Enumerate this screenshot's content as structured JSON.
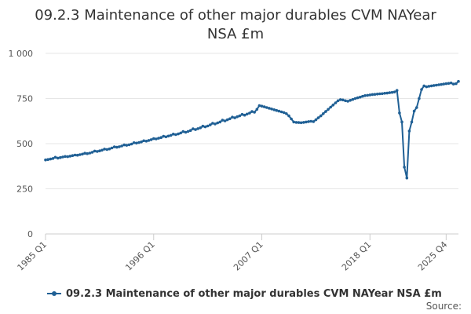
{
  "chart_data": {
    "type": "line",
    "title": "09.2.3 Maintenance of other major durables CVM NAYear NSA £m",
    "title_lines": [
      "09.2.3 Maintenance of other major durables CVM NAYear",
      "NSA £m"
    ],
    "xlabel": "",
    "ylabel": "",
    "ylim": [
      0,
      1000
    ],
    "y_ticks": [
      0,
      250,
      500,
      750,
      1000
    ],
    "y_tick_labels": [
      "0",
      "250",
      "500",
      "750",
      "1 000"
    ],
    "x_ticks": [
      "1985 Q1",
      "1996 Q1",
      "2007 Q1",
      "2018 Q1",
      "2025 Q4"
    ],
    "x_tick_index": [
      0,
      44,
      88,
      132,
      163
    ],
    "grid": "horizontal",
    "legend_position": "bottom",
    "color": "#206095",
    "series": [
      {
        "name": "09.2.3 Maintenance of other major durables CVM NAYear NSA £m",
        "start_quarter": "1985 Q1",
        "values": [
          410,
          412,
          415,
          418,
          425,
          420,
          423,
          426,
          429,
          428,
          431,
          434,
          437,
          436,
          439,
          442,
          447,
          445,
          448,
          452,
          459,
          457,
          460,
          464,
          470,
          468,
          471,
          476,
          482,
          480,
          483,
          487,
          493,
          491,
          494,
          498,
          505,
          503,
          506,
          510,
          516,
          514,
          518,
          522,
          528,
          526,
          530,
          534,
          541,
          538,
          542,
          546,
          553,
          550,
          554,
          559,
          567,
          563,
          568,
          573,
          582,
          578,
          583,
          588,
          597,
          593,
          598,
          604,
          613,
          609,
          615,
          620,
          630,
          626,
          632,
          638,
          647,
          643,
          649,
          654,
          662,
          658,
          664,
          669,
          678,
          674,
          690,
          711,
          708,
          704,
          700,
          696,
          692,
          688,
          684,
          680,
          676,
          672,
          666,
          654,
          637,
          620,
          618,
          617,
          616,
          618,
          620,
          622,
          624,
          622,
          632,
          643,
          654,
          666,
          678,
          690,
          702,
          714,
          726,
          738,
          744,
          742,
          738,
          735,
          740,
          745,
          750,
          754,
          758,
          762,
          766,
          768,
          770,
          772,
          773,
          775,
          776,
          777,
          779,
          780,
          782,
          784,
          786,
          795,
          670,
          620,
          370,
          310,
          570,
          620,
          680,
          700,
          750,
          800,
          820,
          815,
          818,
          820,
          822,
          824,
          826,
          828,
          830,
          832,
          834,
          836,
          830,
          832,
          845
        ]
      }
    ]
  },
  "legend": {
    "label": "09.2.3 Maintenance of other major durables CVM NAYear NSA £m"
  },
  "source_label": "Source:"
}
